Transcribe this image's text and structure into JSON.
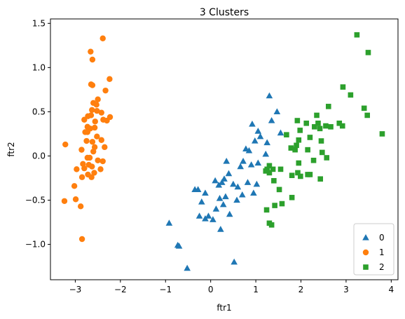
{
  "chart_data": {
    "type": "scatter",
    "title": "3 Clusters",
    "xlabel": "ftr1",
    "ylabel": "ftr2",
    "xlim": [
      -3.55,
      4.15
    ],
    "ylim": [
      -1.4,
      1.55
    ],
    "xticks": [
      -3,
      -2,
      -1,
      0,
      1,
      2,
      3,
      4
    ],
    "yticks": [
      -1.0,
      -0.5,
      0.0,
      0.5,
      1.0,
      1.5
    ],
    "xtick_labels": [
      "−3",
      "−2",
      "−1",
      "0",
      "1",
      "2",
      "3",
      "4"
    ],
    "ytick_labels": [
      "−1.0",
      "−0.5",
      "0.0",
      "0.5",
      "1.0",
      "1.5"
    ],
    "legend_position": "lower-right",
    "grid": false,
    "series": [
      {
        "name": "0",
        "marker": "triangle",
        "color": "#1f77b4",
        "points": [
          [
            1.3,
            0.68
          ],
          [
            1.47,
            0.5
          ],
          [
            0.92,
            0.36
          ],
          [
            1.05,
            0.28
          ],
          [
            1.35,
            0.4
          ],
          [
            1.55,
            0.26
          ],
          [
            0.98,
            0.17
          ],
          [
            1.1,
            0.22
          ],
          [
            1.25,
            0.15
          ],
          [
            0.78,
            0.08
          ],
          [
            0.85,
            0.06
          ],
          [
            1.22,
            0.02
          ],
          [
            0.72,
            -0.06
          ],
          [
            0.66,
            -0.12
          ],
          [
            0.9,
            -0.1
          ],
          [
            1.05,
            -0.08
          ],
          [
            0.35,
            -0.06
          ],
          [
            0.4,
            -0.2
          ],
          [
            0.1,
            -0.28
          ],
          [
            0.18,
            -0.33
          ],
          [
            0.25,
            -0.3
          ],
          [
            0.5,
            -0.32
          ],
          [
            0.82,
            -0.3
          ],
          [
            0.95,
            -0.42
          ],
          [
            1.02,
            -0.32
          ],
          [
            0.6,
            -0.35
          ],
          [
            -0.35,
            -0.38
          ],
          [
            -0.12,
            -0.42
          ],
          [
            -0.2,
            -0.52
          ],
          [
            0.2,
            -0.48
          ],
          [
            0.33,
            -0.46
          ],
          [
            0.58,
            -0.5
          ],
          [
            0.7,
            -0.44
          ],
          [
            0.12,
            -0.6
          ],
          [
            0.28,
            -0.55
          ],
          [
            0.42,
            -0.66
          ],
          [
            -0.05,
            -0.68
          ],
          [
            0.05,
            -0.72
          ],
          [
            0.22,
            -0.83
          ],
          [
            -0.28,
            -0.38
          ],
          [
            -0.25,
            -0.68
          ],
          [
            -0.12,
            -0.71
          ],
          [
            -0.92,
            -0.76
          ],
          [
            -0.73,
            -1.01
          ],
          [
            -0.7,
            -1.02
          ],
          [
            -0.52,
            -1.27
          ],
          [
            0.52,
            -1.2
          ],
          [
            0.3,
            -0.26
          ]
        ]
      },
      {
        "name": "1",
        "marker": "circle",
        "color": "#ff7f0e",
        "points": [
          [
            -2.39,
            1.33
          ],
          [
            -2.66,
            1.18
          ],
          [
            -2.62,
            1.09
          ],
          [
            -2.24,
            0.87
          ],
          [
            -2.65,
            0.81
          ],
          [
            -2.62,
            0.8
          ],
          [
            -2.33,
            0.74
          ],
          [
            -2.5,
            0.64
          ],
          [
            -2.6,
            0.6
          ],
          [
            -2.53,
            0.58
          ],
          [
            -2.63,
            0.52
          ],
          [
            -2.52,
            0.51
          ],
          [
            -2.42,
            0.49
          ],
          [
            -2.65,
            0.46
          ],
          [
            -2.72,
            0.45
          ],
          [
            -2.23,
            0.44
          ],
          [
            -2.8,
            0.41
          ],
          [
            -2.38,
            0.41
          ],
          [
            -2.56,
            0.39
          ],
          [
            -2.3,
            0.4
          ],
          [
            -2.73,
            0.33
          ],
          [
            -2.57,
            0.32
          ],
          [
            -2.67,
            0.31
          ],
          [
            -2.78,
            0.27
          ],
          [
            -2.73,
            0.27
          ],
          [
            -2.52,
            0.22
          ],
          [
            -2.42,
            0.18
          ],
          [
            -2.75,
            0.17
          ],
          [
            -2.62,
            0.16
          ],
          [
            -3.22,
            0.13
          ],
          [
            -2.57,
            0.1
          ],
          [
            -2.35,
            0.1
          ],
          [
            -2.86,
            0.07
          ],
          [
            -2.6,
            0.05
          ],
          [
            -2.68,
            -0.02
          ],
          [
            -2.73,
            -0.02
          ],
          [
            -2.5,
            -0.05
          ],
          [
            -2.39,
            -0.06
          ],
          [
            -2.83,
            -0.09
          ],
          [
            -2.7,
            -0.1
          ],
          [
            -2.63,
            -0.12
          ],
          [
            -2.8,
            -0.14
          ],
          [
            -2.44,
            -0.15
          ],
          [
            -2.97,
            -0.15
          ],
          [
            -2.58,
            -0.19
          ],
          [
            -2.72,
            -0.21
          ],
          [
            -2.85,
            -0.24
          ],
          [
            -2.64,
            -0.24
          ],
          [
            -3.02,
            -0.34
          ],
          [
            -3.24,
            -0.51
          ],
          [
            -2.99,
            -0.49
          ],
          [
            -2.88,
            -0.57
          ],
          [
            -2.85,
            -0.94
          ]
        ]
      },
      {
        "name": "2",
        "marker": "square",
        "color": "#2ca02c",
        "points": [
          [
            3.24,
            1.37
          ],
          [
            3.49,
            1.17
          ],
          [
            2.93,
            0.78
          ],
          [
            3.1,
            0.69
          ],
          [
            2.61,
            0.56
          ],
          [
            3.4,
            0.54
          ],
          [
            3.47,
            0.46
          ],
          [
            2.35,
            0.46
          ],
          [
            1.92,
            0.4
          ],
          [
            2.12,
            0.37
          ],
          [
            2.38,
            0.37
          ],
          [
            2.85,
            0.37
          ],
          [
            2.55,
            0.34
          ],
          [
            2.3,
            0.33
          ],
          [
            2.42,
            0.31
          ],
          [
            2.66,
            0.33
          ],
          [
            2.92,
            0.34
          ],
          [
            1.98,
            0.29
          ],
          [
            3.8,
            0.25
          ],
          [
            1.68,
            0.24
          ],
          [
            2.2,
            0.21
          ],
          [
            2.45,
            0.17
          ],
          [
            1.95,
            0.18
          ],
          [
            1.9,
            0.12
          ],
          [
            1.78,
            0.09
          ],
          [
            2.15,
            0.07
          ],
          [
            1.87,
            0.07
          ],
          [
            2.47,
            0.04
          ],
          [
            2.57,
            -0.02
          ],
          [
            2.28,
            -0.05
          ],
          [
            1.95,
            -0.08
          ],
          [
            1.3,
            -0.11
          ],
          [
            1.25,
            -0.15
          ],
          [
            1.38,
            -0.15
          ],
          [
            1.22,
            -0.17
          ],
          [
            1.55,
            -0.15
          ],
          [
            1.93,
            -0.19
          ],
          [
            1.3,
            -0.19
          ],
          [
            2.15,
            -0.21
          ],
          [
            2.2,
            -0.21
          ],
          [
            1.8,
            -0.22
          ],
          [
            1.99,
            -0.23
          ],
          [
            2.43,
            -0.26
          ],
          [
            1.4,
            -0.28
          ],
          [
            1.52,
            -0.38
          ],
          [
            1.8,
            -0.47
          ],
          [
            1.58,
            -0.54
          ],
          [
            1.42,
            -0.56
          ],
          [
            1.24,
            -0.61
          ],
          [
            1.3,
            -0.76
          ],
          [
            1.35,
            -0.78
          ]
        ]
      }
    ]
  }
}
